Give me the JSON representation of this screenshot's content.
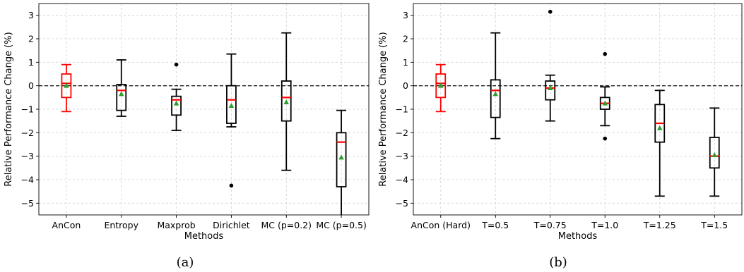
{
  "chart_data": [
    {
      "type": "box",
      "panel_caption": "(a)",
      "xlabel": "Methods",
      "ylabel": "Relative Performance Change (%)",
      "ylim": [
        -5.5,
        3.5
      ],
      "yticks": [
        -5,
        -4,
        -3,
        -2,
        -1,
        0,
        1,
        2,
        3
      ],
      "reference_line": 0,
      "grid": true,
      "categories": [
        "AnCon",
        "Entropy",
        "Maxprob",
        "Dirichlet",
        "MC (p=0.2)",
        "MC (p=0.5)"
      ],
      "boxes": [
        {
          "whisker_low": -1.1,
          "q1": -0.5,
          "median": 0.1,
          "q3": 0.5,
          "whisker_high": 0.9,
          "mean": 0.0,
          "outliers": [],
          "color": "#ff0000"
        },
        {
          "whisker_low": -1.3,
          "q1": -1.05,
          "median": -0.2,
          "q3": 0.05,
          "whisker_high": 1.1,
          "mean": -0.35,
          "outliers": [],
          "color": "#000000"
        },
        {
          "whisker_low": -1.9,
          "q1": -1.25,
          "median": -0.6,
          "q3": -0.45,
          "whisker_high": -0.15,
          "mean": -0.75,
          "outliers": [
            0.9
          ],
          "color": "#000000"
        },
        {
          "whisker_low": -1.75,
          "q1": -1.6,
          "median": -0.6,
          "q3": 0.0,
          "whisker_high": 1.35,
          "mean": -0.85,
          "outliers": [
            -4.25
          ],
          "color": "#000000"
        },
        {
          "whisker_low": -3.6,
          "q1": -1.5,
          "median": -0.5,
          "q3": 0.2,
          "whisker_high": 2.25,
          "mean": -0.7,
          "outliers": [],
          "color": "#000000"
        },
        {
          "whisker_low": -5.6,
          "q1": -4.3,
          "median": -2.4,
          "q3": -2.0,
          "whisker_high": -1.05,
          "mean": -3.05,
          "outliers": [],
          "color": "#000000"
        }
      ]
    },
    {
      "type": "box",
      "panel_caption": "(b)",
      "xlabel": "Methods",
      "ylabel": "Relative Performance Change (%)",
      "ylim": [
        -5.5,
        3.5
      ],
      "yticks": [
        -5,
        -4,
        -3,
        -2,
        -1,
        0,
        1,
        2,
        3
      ],
      "reference_line": 0,
      "grid": true,
      "categories": [
        "AnCon (Hard)",
        "T=0.5",
        "T=0.75",
        "T=1.0",
        "T=1.25",
        "T=1.5"
      ],
      "boxes": [
        {
          "whisker_low": -1.1,
          "q1": -0.5,
          "median": 0.1,
          "q3": 0.5,
          "whisker_high": 0.9,
          "mean": 0.0,
          "outliers": [],
          "color": "#ff0000"
        },
        {
          "whisker_low": -2.25,
          "q1": -1.35,
          "median": -0.2,
          "q3": 0.25,
          "whisker_high": 2.25,
          "mean": -0.35,
          "outliers": [],
          "color": "#000000"
        },
        {
          "whisker_low": -1.5,
          "q1": -0.6,
          "median": -0.1,
          "q3": 0.2,
          "whisker_high": 0.45,
          "mean": -0.1,
          "outliers": [
            3.15
          ],
          "color": "#000000"
        },
        {
          "whisker_low": -1.7,
          "q1": -1.0,
          "median": -0.75,
          "q3": -0.5,
          "whisker_high": -0.05,
          "mean": -0.75,
          "outliers": [
            1.35,
            -2.25
          ],
          "color": "#000000"
        },
        {
          "whisker_low": -4.7,
          "q1": -2.4,
          "median": -1.6,
          "q3": -0.8,
          "whisker_high": -0.2,
          "mean": -1.8,
          "outliers": [],
          "color": "#000000"
        },
        {
          "whisker_low": -4.7,
          "q1": -3.5,
          "median": -3.0,
          "q3": -2.2,
          "whisker_high": -0.95,
          "mean": -2.95,
          "outliers": [],
          "color": "#000000"
        }
      ]
    }
  ]
}
